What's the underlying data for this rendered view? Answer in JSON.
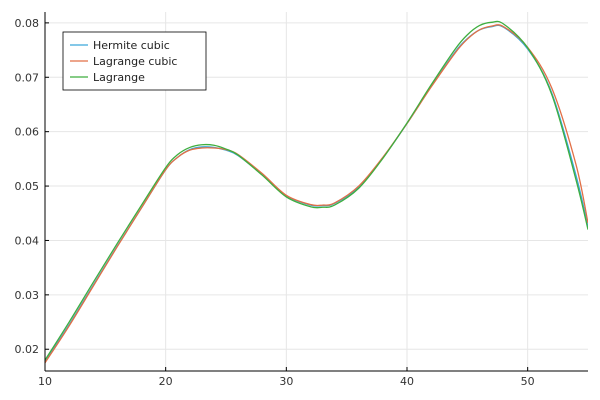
{
  "chart_data": {
    "type": "line",
    "title": "",
    "xlabel": "",
    "ylabel": "",
    "xlim": [
      10,
      55
    ],
    "ylim": [
      0.016,
      0.082
    ],
    "xticks": [
      10,
      20,
      30,
      40,
      50
    ],
    "yticks": [
      0.02,
      0.03,
      0.04,
      0.05,
      0.06,
      0.07,
      0.08
    ],
    "grid": true,
    "legend": "top-left",
    "series": [
      {
        "name": "Hermite cubic",
        "color": "#3aa7d9",
        "x": [
          10,
          12,
          14,
          16,
          18,
          20,
          21,
          22,
          23,
          24,
          25,
          26,
          28,
          30,
          32,
          33,
          34,
          36,
          38,
          40,
          42,
          44,
          45,
          46,
          47,
          48,
          50,
          52,
          54,
          55
        ],
        "y": [
          0.0178,
          0.0245,
          0.0318,
          0.039,
          0.046,
          0.053,
          0.0553,
          0.0567,
          0.0572,
          0.0571,
          0.0566,
          0.0556,
          0.0521,
          0.0482,
          0.0465,
          0.0464,
          0.0468,
          0.0498,
          0.0552,
          0.0615,
          0.0683,
          0.0747,
          0.0771,
          0.0787,
          0.0793,
          0.0792,
          0.0752,
          0.0671,
          0.052,
          0.0425
        ]
      },
      {
        "name": "Lagrange cubic",
        "color": "#e26f46",
        "x": [
          10,
          12,
          14,
          16,
          18,
          20,
          21,
          22,
          23,
          24,
          25,
          26,
          28,
          30,
          32,
          33,
          34,
          36,
          38,
          40,
          42,
          44,
          45,
          46,
          47,
          48,
          50,
          52,
          54,
          55
        ],
        "y": [
          0.0175,
          0.0243,
          0.0316,
          0.0389,
          0.046,
          0.053,
          0.0553,
          0.0566,
          0.057,
          0.057,
          0.0567,
          0.0558,
          0.0523,
          0.0483,
          0.0466,
          0.0465,
          0.0469,
          0.05,
          0.0553,
          0.0615,
          0.0682,
          0.0745,
          0.077,
          0.0787,
          0.0794,
          0.0793,
          0.0755,
          0.068,
          0.054,
          0.0432
        ]
      },
      {
        "name": "Lagrange",
        "color": "#3fae3f",
        "x": [
          10,
          12,
          14,
          16,
          18,
          20,
          21,
          22,
          23,
          24,
          25,
          26,
          28,
          30,
          32,
          33,
          34,
          36,
          38,
          40,
          42,
          44,
          45,
          46,
          47,
          48,
          50,
          52,
          54,
          55
        ],
        "y": [
          0.018,
          0.025,
          0.0323,
          0.0395,
          0.0465,
          0.0534,
          0.0558,
          0.0571,
          0.0576,
          0.0575,
          0.0568,
          0.0557,
          0.052,
          0.048,
          0.0462,
          0.0461,
          0.0465,
          0.0496,
          0.0551,
          0.0616,
          0.0686,
          0.0752,
          0.0778,
          0.0795,
          0.0801,
          0.0798,
          0.0754,
          0.0668,
          0.0512,
          0.042
        ]
      }
    ]
  }
}
